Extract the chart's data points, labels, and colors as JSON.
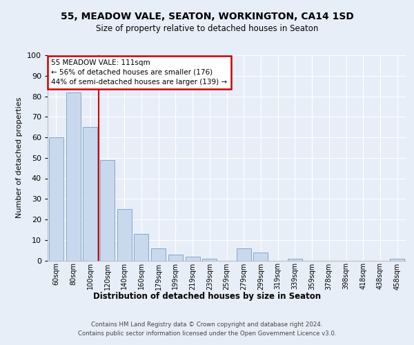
{
  "title1": "55, MEADOW VALE, SEATON, WORKINGTON, CA14 1SD",
  "title2": "Size of property relative to detached houses in Seaton",
  "xlabel": "Distribution of detached houses by size in Seaton",
  "ylabel": "Number of detached properties",
  "categories": [
    "60sqm",
    "80sqm",
    "100sqm",
    "120sqm",
    "140sqm",
    "160sqm",
    "179sqm",
    "199sqm",
    "219sqm",
    "239sqm",
    "259sqm",
    "279sqm",
    "299sqm",
    "319sqm",
    "339sqm",
    "359sqm",
    "378sqm",
    "398sqm",
    "418sqm",
    "438sqm",
    "458sqm"
  ],
  "values": [
    60,
    82,
    65,
    49,
    25,
    13,
    6,
    3,
    2,
    1,
    0,
    6,
    4,
    0,
    1,
    0,
    0,
    0,
    0,
    0,
    1
  ],
  "bar_color": "#c9d9ed",
  "bar_edge_color": "#7fa8cc",
  "vline_x": 2.5,
  "vline_color": "#cc0000",
  "annotation_title": "55 MEADOW VALE: 111sqm",
  "annotation_line1": "← 56% of detached houses are smaller (176)",
  "annotation_line2": "44% of semi-detached houses are larger (139) →",
  "annotation_box_color": "#cc0000",
  "ylim": [
    0,
    100
  ],
  "yticks": [
    0,
    10,
    20,
    30,
    40,
    50,
    60,
    70,
    80,
    90,
    100
  ],
  "footer1": "Contains HM Land Registry data © Crown copyright and database right 2024.",
  "footer2": "Contains public sector information licensed under the Open Government Licence v3.0.",
  "bg_color": "#e8eef8",
  "plot_bg_color": "#e8eef8"
}
